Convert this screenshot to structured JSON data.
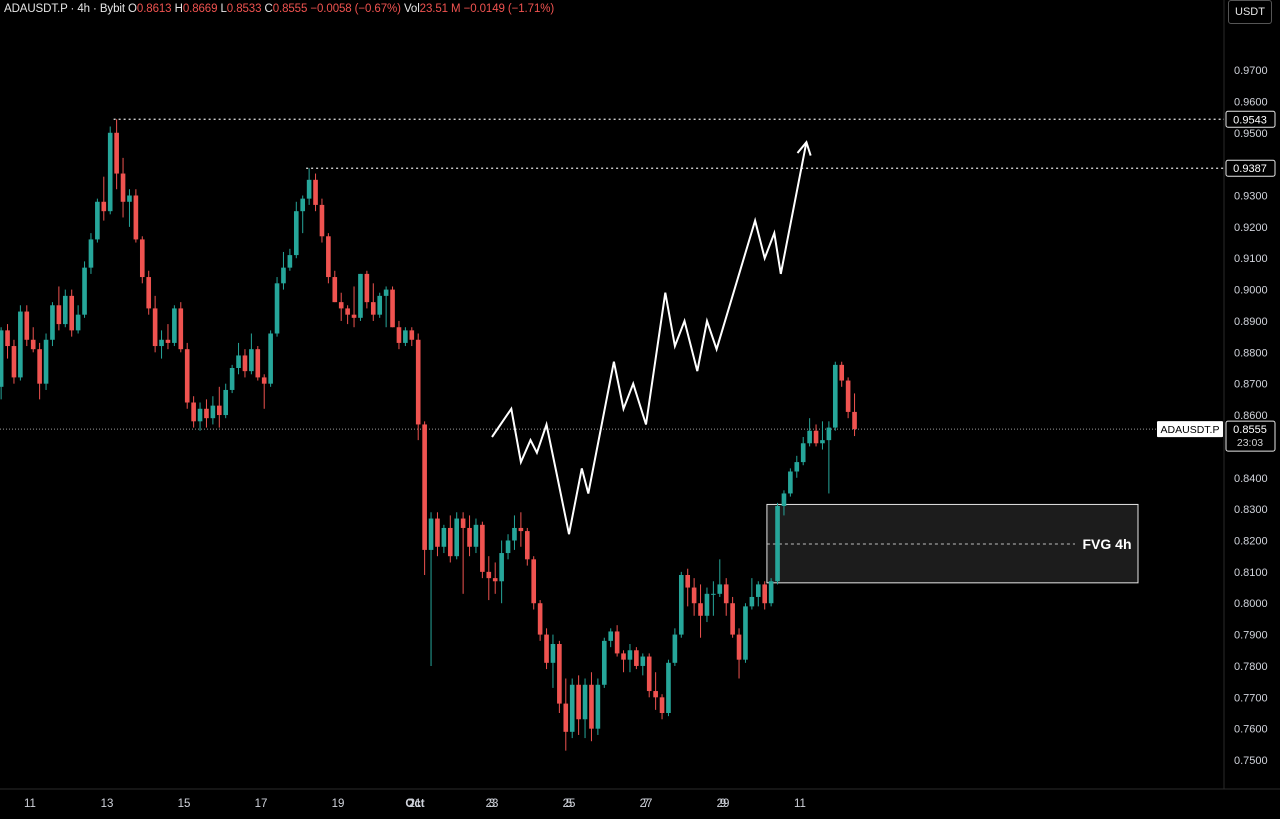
{
  "header": {
    "symbol": "ADAUSDT.P · 4h · Bybit",
    "o_label": "O",
    "o_value": "0.8613",
    "h_label": "H",
    "h_value": "0.8669",
    "l_label": "L",
    "l_value": "0.8533",
    "c_label": "C",
    "c_value": "0.8555",
    "change": "−0.0058 (−0.67%)",
    "vol_label": "Vol",
    "vol_value": "23.51 M",
    "vol_change": "−0.0149 (−1.71%)"
  },
  "currency_button": "USDT",
  "colors": {
    "up": "#26a69a",
    "down": "#ef5350",
    "background": "#000000",
    "text": "#d1d4dc"
  },
  "chart_data": {
    "type": "candlestick",
    "symbol": "ADAUSDT.P",
    "timeframe": "4h",
    "exchange": "Bybit",
    "y_axis": {
      "ticks": [
        "0.9700",
        "0.9600",
        "0.9500",
        "0.9300",
        "0.9200",
        "0.9100",
        "0.9000",
        "0.8900",
        "0.8800",
        "0.8700",
        "0.8600",
        "0.8400",
        "0.8300",
        "0.8200",
        "0.8100",
        "0.8000",
        "0.7900",
        "0.7800",
        "0.7700",
        "0.7600",
        "0.7500"
      ],
      "range": [
        0.743,
        0.985
      ]
    },
    "x_axis": {
      "ticks": [
        "11",
        "13",
        "15",
        "17",
        "19",
        "21",
        "23",
        "25",
        "27",
        "29",
        "Oct",
        "3",
        "5",
        "7",
        "9",
        "11"
      ],
      "dates": [
        "Sep 11",
        "Sep 13",
        "Sep 15",
        "Sep 17",
        "Sep 19",
        "Sep 21",
        "Sep 23",
        "Sep 25",
        "Sep 27",
        "Sep 29",
        "Oct 1",
        "Oct 3",
        "Oct 5",
        "Oct 7",
        "Oct 9",
        "Oct 11"
      ]
    },
    "levels": [
      {
        "value": 0.9543,
        "label": "0.9543",
        "style": "dotted"
      },
      {
        "value": 0.9387,
        "label": "0.9387",
        "style": "dotted"
      }
    ],
    "current_price": {
      "value": 0.8555,
      "symbol_label": "ADAUSDT.P",
      "label": "0.8555",
      "countdown": "23:03"
    },
    "fvg_zone": {
      "label": "FVG 4h",
      "top": 0.8315,
      "bottom": 0.8065,
      "mid": 0.8189
    },
    "candles": [
      [
        0.874,
        0.881,
        0.866,
        0.869
      ],
      [
        0.869,
        0.888,
        0.865,
        0.887
      ],
      [
        0.887,
        0.889,
        0.878,
        0.882
      ],
      [
        0.882,
        0.884,
        0.87,
        0.872
      ],
      [
        0.872,
        0.895,
        0.871,
        0.893
      ],
      [
        0.893,
        0.895,
        0.882,
        0.884
      ],
      [
        0.884,
        0.888,
        0.88,
        0.881
      ],
      [
        0.881,
        0.883,
        0.865,
        0.87
      ],
      [
        0.87,
        0.886,
        0.868,
        0.884
      ],
      [
        0.884,
        0.896,
        0.882,
        0.895
      ],
      [
        0.895,
        0.901,
        0.887,
        0.889
      ],
      [
        0.889,
        0.9,
        0.888,
        0.898
      ],
      [
        0.898,
        0.9,
        0.885,
        0.887
      ],
      [
        0.887,
        0.895,
        0.886,
        0.892
      ],
      [
        0.892,
        0.909,
        0.891,
        0.907
      ],
      [
        0.907,
        0.918,
        0.905,
        0.916
      ],
      [
        0.916,
        0.929,
        0.915,
        0.928
      ],
      [
        0.928,
        0.936,
        0.922,
        0.925
      ],
      [
        0.925,
        0.952,
        0.924,
        0.95
      ],
      [
        0.95,
        0.9543,
        0.932,
        0.937
      ],
      [
        0.937,
        0.942,
        0.923,
        0.928
      ],
      [
        0.928,
        0.932,
        0.92,
        0.93
      ],
      [
        0.93,
        0.932,
        0.915,
        0.916
      ],
      [
        0.916,
        0.917,
        0.902,
        0.904
      ],
      [
        0.904,
        0.906,
        0.892,
        0.894
      ],
      [
        0.894,
        0.898,
        0.88,
        0.882
      ],
      [
        0.882,
        0.887,
        0.878,
        0.884
      ],
      [
        0.884,
        0.889,
        0.881,
        0.883
      ],
      [
        0.883,
        0.895,
        0.882,
        0.894
      ],
      [
        0.894,
        0.896,
        0.88,
        0.881
      ],
      [
        0.881,
        0.883,
        0.862,
        0.864
      ],
      [
        0.864,
        0.866,
        0.856,
        0.858
      ],
      [
        0.858,
        0.864,
        0.855,
        0.862
      ],
      [
        0.862,
        0.865,
        0.856,
        0.859
      ],
      [
        0.859,
        0.866,
        0.857,
        0.863
      ],
      [
        0.863,
        0.869,
        0.856,
        0.86
      ],
      [
        0.86,
        0.87,
        0.859,
        0.868
      ],
      [
        0.868,
        0.876,
        0.867,
        0.875
      ],
      [
        0.875,
        0.883,
        0.873,
        0.879
      ],
      [
        0.879,
        0.881,
        0.872,
        0.874
      ],
      [
        0.874,
        0.886,
        0.873,
        0.881
      ],
      [
        0.881,
        0.882,
        0.871,
        0.872
      ],
      [
        0.872,
        0.873,
        0.862,
        0.87
      ],
      [
        0.87,
        0.887,
        0.869,
        0.886
      ],
      [
        0.886,
        0.904,
        0.885,
        0.902
      ],
      [
        0.902,
        0.912,
        0.9,
        0.907
      ],
      [
        0.907,
        0.913,
        0.906,
        0.911
      ],
      [
        0.911,
        0.928,
        0.91,
        0.925
      ],
      [
        0.925,
        0.93,
        0.918,
        0.929
      ],
      [
        0.929,
        0.9387,
        0.927,
        0.935
      ],
      [
        0.935,
        0.937,
        0.925,
        0.927
      ],
      [
        0.927,
        0.929,
        0.915,
        0.917
      ],
      [
        0.917,
        0.918,
        0.902,
        0.904
      ],
      [
        0.904,
        0.906,
        0.896,
        0.896
      ],
      [
        0.896,
        0.899,
        0.89,
        0.894
      ],
      [
        0.894,
        0.895,
        0.889,
        0.892
      ],
      [
        0.892,
        0.901,
        0.888,
        0.891
      ],
      [
        0.891,
        0.905,
        0.89,
        0.905
      ],
      [
        0.905,
        0.906,
        0.894,
        0.896
      ],
      [
        0.896,
        0.902,
        0.89,
        0.892
      ],
      [
        0.892,
        0.899,
        0.891,
        0.898
      ],
      [
        0.898,
        0.901,
        0.888,
        0.9
      ],
      [
        0.9,
        0.901,
        0.888,
        0.888
      ],
      [
        0.888,
        0.89,
        0.881,
        0.883
      ],
      [
        0.883,
        0.888,
        0.882,
        0.887
      ],
      [
        0.887,
        0.888,
        0.882,
        0.884
      ],
      [
        0.884,
        0.886,
        0.852,
        0.857
      ],
      [
        0.857,
        0.858,
        0.809,
        0.817
      ],
      [
        0.817,
        0.829,
        0.78,
        0.827
      ],
      [
        0.827,
        0.829,
        0.815,
        0.818
      ],
      [
        0.818,
        0.825,
        0.816,
        0.824
      ],
      [
        0.824,
        0.828,
        0.813,
        0.815
      ],
      [
        0.815,
        0.829,
        0.814,
        0.827
      ],
      [
        0.827,
        0.829,
        0.803,
        0.824
      ],
      [
        0.824,
        0.828,
        0.815,
        0.818
      ],
      [
        0.818,
        0.827,
        0.816,
        0.825
      ],
      [
        0.825,
        0.826,
        0.808,
        0.81
      ],
      [
        0.81,
        0.815,
        0.801,
        0.808
      ],
      [
        0.808,
        0.813,
        0.803,
        0.807
      ],
      [
        0.807,
        0.82,
        0.8,
        0.816
      ],
      [
        0.816,
        0.822,
        0.814,
        0.82
      ],
      [
        0.82,
        0.828,
        0.817,
        0.824
      ],
      [
        0.824,
        0.829,
        0.818,
        0.823
      ],
      [
        0.823,
        0.824,
        0.812,
        0.814
      ],
      [
        0.814,
        0.815,
        0.798,
        0.8
      ],
      [
        0.8,
        0.801,
        0.788,
        0.79
      ],
      [
        0.79,
        0.792,
        0.779,
        0.781
      ],
      [
        0.781,
        0.79,
        0.773,
        0.787
      ],
      [
        0.787,
        0.788,
        0.765,
        0.768
      ],
      [
        0.768,
        0.776,
        0.753,
        0.759
      ],
      [
        0.759,
        0.776,
        0.757,
        0.774
      ],
      [
        0.774,
        0.777,
        0.758,
        0.763
      ],
      [
        0.763,
        0.776,
        0.757,
        0.774
      ],
      [
        0.774,
        0.778,
        0.756,
        0.76
      ],
      [
        0.76,
        0.776,
        0.758,
        0.774
      ],
      [
        0.774,
        0.789,
        0.773,
        0.788
      ],
      [
        0.788,
        0.792,
        0.786,
        0.791
      ],
      [
        0.791,
        0.793,
        0.783,
        0.784
      ],
      [
        0.784,
        0.785,
        0.778,
        0.782
      ],
      [
        0.782,
        0.787,
        0.778,
        0.785
      ],
      [
        0.785,
        0.786,
        0.779,
        0.78
      ],
      [
        0.78,
        0.784,
        0.777,
        0.783
      ],
      [
        0.783,
        0.784,
        0.77,
        0.772
      ],
      [
        0.772,
        0.778,
        0.766,
        0.77
      ],
      [
        0.77,
        0.771,
        0.763,
        0.765
      ],
      [
        0.765,
        0.782,
        0.764,
        0.781
      ],
      [
        0.781,
        0.792,
        0.78,
        0.79
      ],
      [
        0.79,
        0.81,
        0.789,
        0.809
      ],
      [
        0.809,
        0.811,
        0.799,
        0.805
      ],
      [
        0.805,
        0.808,
        0.796,
        0.8
      ],
      [
        0.8,
        0.806,
        0.789,
        0.796
      ],
      [
        0.796,
        0.805,
        0.794,
        0.803
      ],
      [
        0.803,
        0.807,
        0.796,
        0.803
      ],
      [
        0.803,
        0.814,
        0.802,
        0.806
      ],
      [
        0.806,
        0.808,
        0.796,
        0.8
      ],
      [
        0.8,
        0.802,
        0.789,
        0.79
      ],
      [
        0.79,
        0.792,
        0.776,
        0.782
      ],
      [
        0.782,
        0.8,
        0.781,
        0.799
      ],
      [
        0.799,
        0.808,
        0.798,
        0.802
      ],
      [
        0.802,
        0.807,
        0.799,
        0.806
      ],
      [
        0.806,
        0.807,
        0.798,
        0.8
      ],
      [
        0.8,
        0.808,
        0.799,
        0.807
      ],
      [
        0.807,
        0.832,
        0.806,
        0.831
      ],
      [
        0.831,
        0.836,
        0.828,
        0.835
      ],
      [
        0.835,
        0.843,
        0.834,
        0.842
      ],
      [
        0.842,
        0.847,
        0.84,
        0.845
      ],
      [
        0.845,
        0.853,
        0.844,
        0.851
      ],
      [
        0.851,
        0.859,
        0.85,
        0.855
      ],
      [
        0.855,
        0.857,
        0.85,
        0.851
      ],
      [
        0.851,
        0.858,
        0.849,
        0.852
      ],
      [
        0.852,
        0.858,
        0.835,
        0.856
      ],
      [
        0.856,
        0.877,
        0.855,
        0.876
      ],
      [
        0.876,
        0.877,
        0.869,
        0.871
      ],
      [
        0.871,
        0.872,
        0.859,
        0.861
      ],
      [
        0.861,
        0.8669,
        0.8533,
        0.8555
      ]
    ],
    "projection": [
      [
        "Oct 3 00:00",
        0.853
      ],
      [
        "Oct 3 12:00",
        0.862
      ],
      [
        "Oct 3 18:00",
        0.845
      ],
      [
        "Oct 4 00:00",
        0.852
      ],
      [
        "Oct 4 04:00",
        0.848
      ],
      [
        "Oct 4 10:00",
        0.857
      ],
      [
        "Oct 4 16:00",
        0.842
      ],
      [
        "Oct 5 00:00",
        0.822
      ],
      [
        "Oct 5 08:00",
        0.843
      ],
      [
        "Oct 5 12:00",
        0.835
      ],
      [
        "Oct 6 04:00",
        0.877
      ],
      [
        "Oct 6 10:00",
        0.862
      ],
      [
        "Oct 6 16:00",
        0.87
      ],
      [
        "Oct 7 00:00",
        0.857
      ],
      [
        "Oct 7 12:00",
        0.899
      ],
      [
        "Oct 7 18:00",
        0.882
      ],
      [
        "Oct 8 00:00",
        0.89
      ],
      [
        "Oct 8 08:00",
        0.874
      ],
      [
        "Oct 8 14:00",
        0.89
      ],
      [
        "Oct 8 20:00",
        0.881
      ],
      [
        "Oct 9 20:00",
        0.922
      ],
      [
        "Oct 10 02:00",
        0.91
      ],
      [
        "Oct 10 08:00",
        0.918
      ],
      [
        "Oct 10 12:00",
        0.905
      ],
      [
        "Oct 11 04:00",
        0.947
      ]
    ]
  }
}
